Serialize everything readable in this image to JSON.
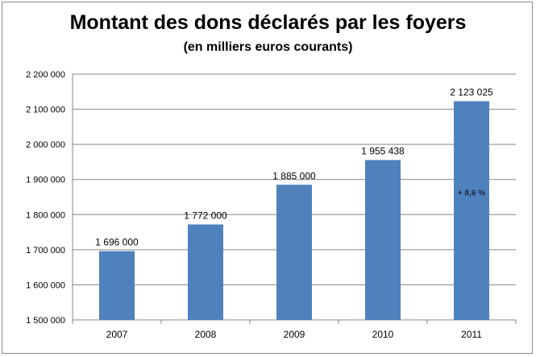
{
  "chart_data": {
    "type": "bar",
    "title": "Montant des dons déclarés par les foyers",
    "subtitle": "(en milliers euros courants)",
    "categories": [
      "2007",
      "2008",
      "2009",
      "2010",
      "2011"
    ],
    "values": [
      1696000,
      1772000,
      1885000,
      1955438,
      2123025
    ],
    "data_labels": [
      "1 696 000",
      "1 772 000",
      "1 885 000",
      "1 955 438",
      "2 123 025"
    ],
    "ylim": [
      1500000,
      2200000
    ],
    "yticks": [
      1500000,
      1600000,
      1700000,
      1800000,
      1900000,
      2000000,
      2100000,
      2200000
    ],
    "ytick_labels": [
      "1 500 000",
      "1 600 000",
      "1 700 000",
      "1 800 000",
      "1 900 000",
      "2 000 000",
      "2 100 000",
      "2 200 000"
    ],
    "xlabel": "",
    "ylabel": "",
    "grid": true,
    "bar_color": "#4f81bd",
    "annotation": {
      "category": "2011",
      "text": "+ 8,6 %"
    }
  }
}
